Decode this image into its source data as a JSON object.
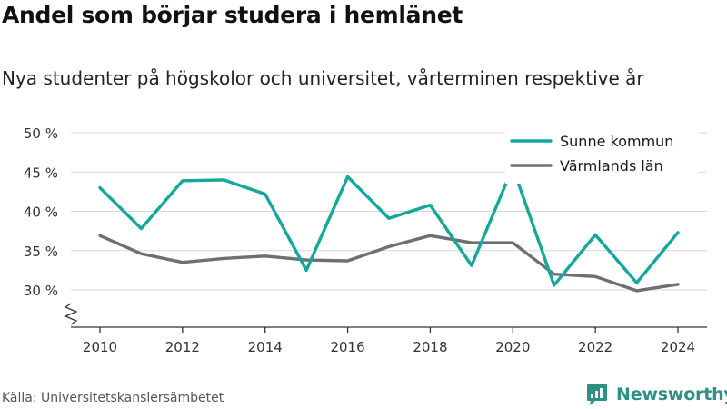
{
  "header": {
    "title": "Andel som börjar studera i hemlänet",
    "subtitle": "Nya studenter på högskolor och universitet, vårterminen respektive år"
  },
  "footer": {
    "source": "Källa: Universitetskanslersämbetet",
    "brand": "Newsworthy",
    "brand_icon": "newsworthy-logo-icon"
  },
  "colors": {
    "sunne": "#12a89b",
    "varmland": "#706e73",
    "grid": "#d8d8d8",
    "axis": "#333333",
    "brand": "#2f8f85"
  },
  "chart_data": {
    "type": "line",
    "x": [
      2010,
      2011,
      2012,
      2013,
      2014,
      2015,
      2016,
      2017,
      2018,
      2019,
      2020,
      2021,
      2022,
      2023,
      2024
    ],
    "series": [
      {
        "name": "Sunne kommun",
        "color": "#12a89b",
        "values": [
          43.0,
          37.8,
          43.9,
          44.0,
          42.2,
          32.5,
          44.4,
          39.1,
          40.8,
          33.1,
          45.6,
          30.6,
          37.0,
          30.9,
          37.3
        ]
      },
      {
        "name": "Värmlands län",
        "color": "#706e73",
        "values": [
          36.9,
          34.6,
          33.5,
          34.0,
          34.3,
          33.8,
          33.7,
          35.5,
          36.9,
          36.0,
          36.0,
          32.0,
          31.7,
          29.9,
          30.7
        ]
      }
    ],
    "y_ticks": [
      30,
      35,
      40,
      45,
      50
    ],
    "y_tick_labels": [
      "30 %",
      "35 %",
      "40 %",
      "45 %",
      "50 %"
    ],
    "x_ticks": [
      2010,
      2012,
      2014,
      2016,
      2018,
      2020,
      2022,
      2024
    ],
    "x_tick_labels": [
      "2010",
      "2012",
      "2014",
      "2016",
      "2018",
      "2020",
      "2022",
      "2024"
    ],
    "ylim": [
      30,
      50
    ],
    "xlim": [
      2010,
      2024
    ],
    "y_axis_break": true,
    "grid": true,
    "legend": "top-right",
    "xlabel": "",
    "ylabel": ""
  }
}
